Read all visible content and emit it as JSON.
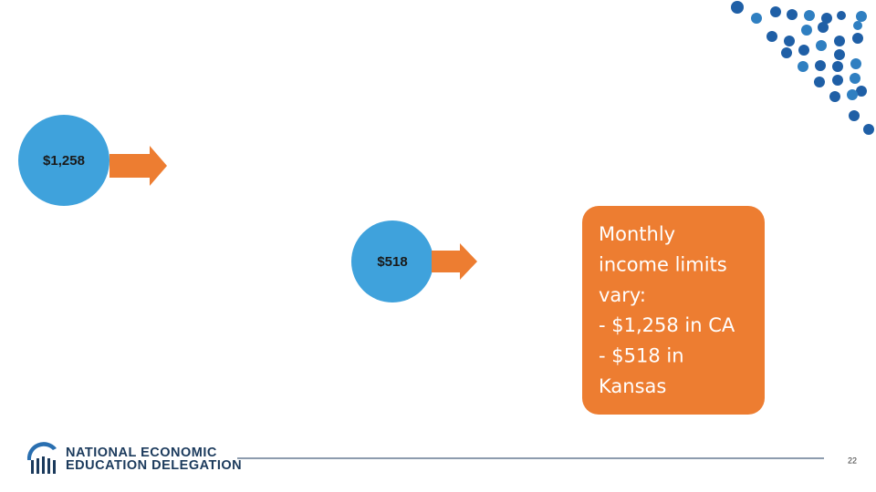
{
  "circles": [
    {
      "label": "$1,258"
    },
    {
      "label": "$518"
    }
  ],
  "callout": {
    "lines": [
      "Monthly",
      "income limits",
      "vary:",
      "- $1,258 in CA",
      "- $518 in",
      "Kansas"
    ]
  },
  "footer": {
    "logo_line1": "NATIONAL ECONOMIC",
    "logo_line2": "EDUCATION DELEGATION",
    "page_number": "22"
  }
}
